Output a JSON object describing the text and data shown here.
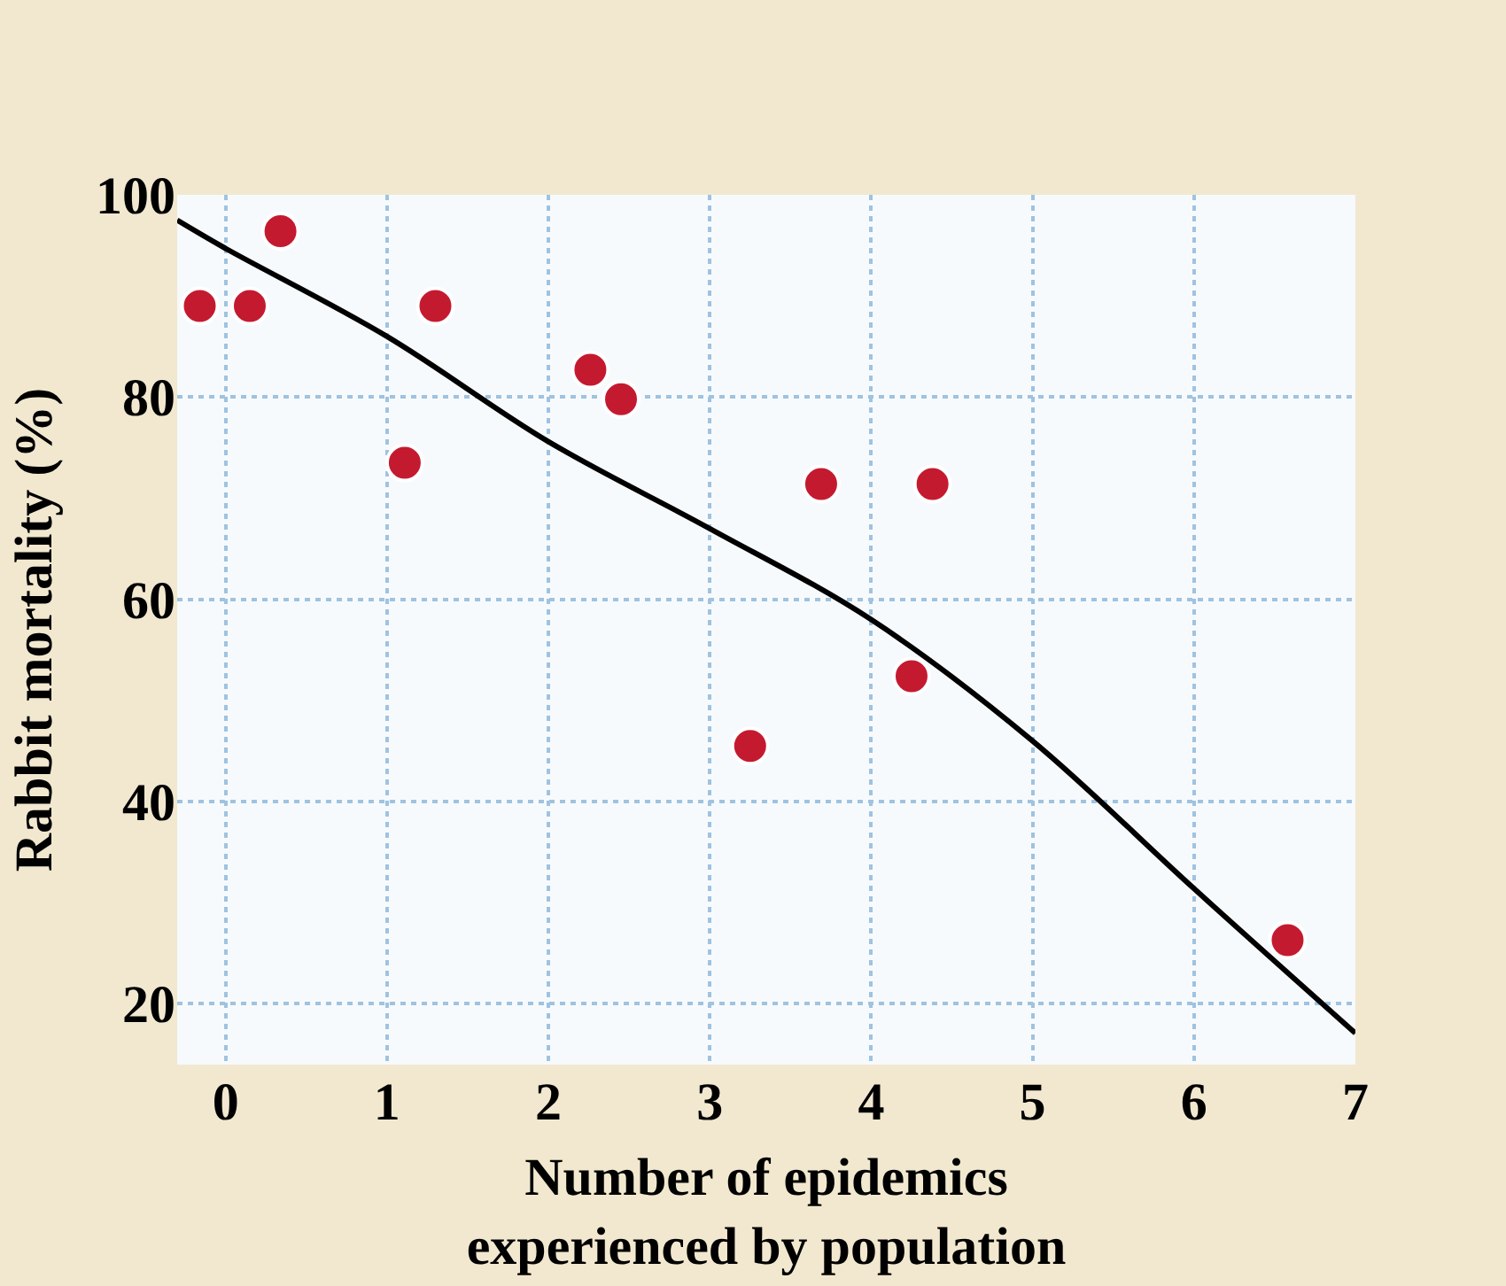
{
  "chart_data": {
    "type": "scatter",
    "xlabel": "Number of epidemics\nexperienced by population",
    "ylabel": "Rabbit mortality (%)",
    "xlim": [
      -0.3,
      7
    ],
    "ylim": [
      14,
      100
    ],
    "xticks": [
      0,
      1,
      2,
      3,
      4,
      5,
      6,
      7
    ],
    "yticks": [
      20,
      40,
      60,
      80,
      100
    ],
    "grid": true,
    "marker": "circle",
    "series": [
      {
        "color": "#c41a30",
        "x": [
          -0.16,
          0.15,
          0.34,
          1.11,
          1.3,
          2.26,
          2.45,
          3.25,
          3.69,
          4.25,
          4.38,
          6.58
        ],
        "values": [
          89,
          89,
          96.4,
          73.5,
          89,
          82.7,
          79.8,
          45.5,
          71.4,
          52.4,
          71.4,
          26.3
        ]
      },
      {
        "type": "line",
        "color": "#000000",
        "marker": "none",
        "x": [
          -0.3,
          0,
          1,
          2,
          3,
          4,
          5,
          6,
          7
        ],
        "values": [
          97.5,
          94.7,
          86,
          75.6,
          67,
          58,
          46,
          31.4,
          17.1
        ]
      }
    ]
  }
}
